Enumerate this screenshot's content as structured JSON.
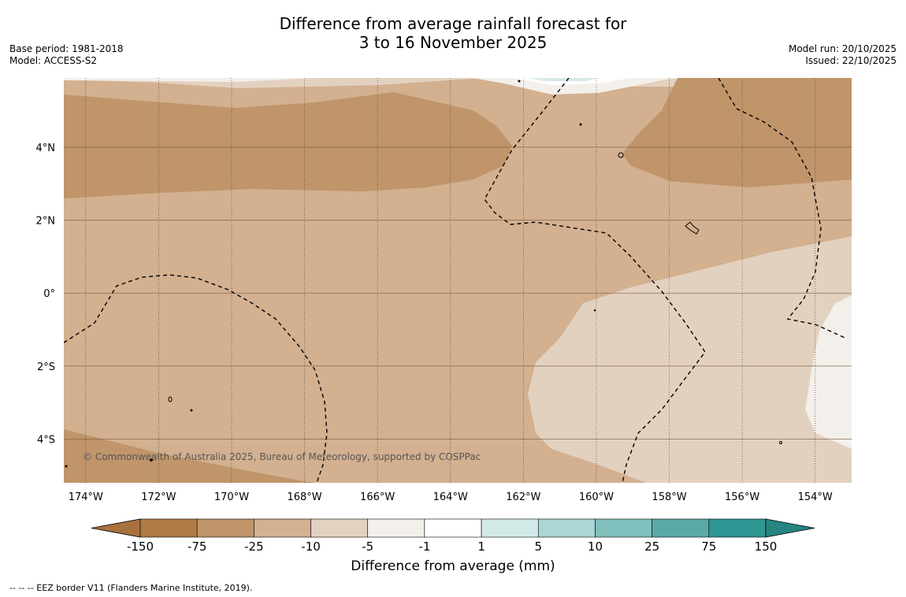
{
  "title": {
    "line1": "Difference from average rainfall forecast for",
    "line2": "3 to 16 November 2025"
  },
  "meta_left": {
    "base_period": "Base period: 1981-2018",
    "model": "Model: ACCESS-S2"
  },
  "meta_right": {
    "model_run": "Model run: 20/10/2025",
    "issued": "Issued: 22/10/2025"
  },
  "map": {
    "lon_range": [
      -174.6,
      -153.0
    ],
    "lat_range": [
      -5.2,
      5.9
    ],
    "lat_ticks": [
      {
        "value": 4,
        "label": "4°N"
      },
      {
        "value": 2,
        "label": "2°N"
      },
      {
        "value": 0,
        "label": "0°"
      },
      {
        "value": -2,
        "label": "2°S"
      },
      {
        "value": -4,
        "label": "4°S"
      }
    ],
    "lon_ticks": [
      {
        "value": -174,
        "label": "174°W"
      },
      {
        "value": -172,
        "label": "172°W"
      },
      {
        "value": -170,
        "label": "170°W"
      },
      {
        "value": -168,
        "label": "168°W"
      },
      {
        "value": -166,
        "label": "166°W"
      },
      {
        "value": -164,
        "label": "164°W"
      },
      {
        "value": -162,
        "label": "162°W"
      },
      {
        "value": -160,
        "label": "160°W"
      },
      {
        "value": -158,
        "label": "158°W"
      },
      {
        "value": -156,
        "label": "156°W"
      },
      {
        "value": -154,
        "label": "154°W"
      }
    ],
    "copyright": "© Commonwealth of Australia 2025, Bureau of Meteorology, supported by COSPPac"
  },
  "colorbar": {
    "title": "Difference from average (mm)",
    "ticks": [
      "-150",
      "-75",
      "-25",
      "-10",
      "-5",
      "-1",
      "1",
      "5",
      "10",
      "25",
      "75",
      "150"
    ],
    "colors": [
      "#a9713e",
      "#b07a45",
      "#c0956a",
      "#d2b090",
      "#e3d1c0",
      "#f3efea",
      "#ffffff",
      "#d4eae9",
      "#aad6d4",
      "#80c0bd",
      "#5aa9a7",
      "#2e9592",
      "#268580"
    ]
  },
  "footer": "--  --  -- EEZ border V11 (Flanders Marine Institute, 2019)."
}
